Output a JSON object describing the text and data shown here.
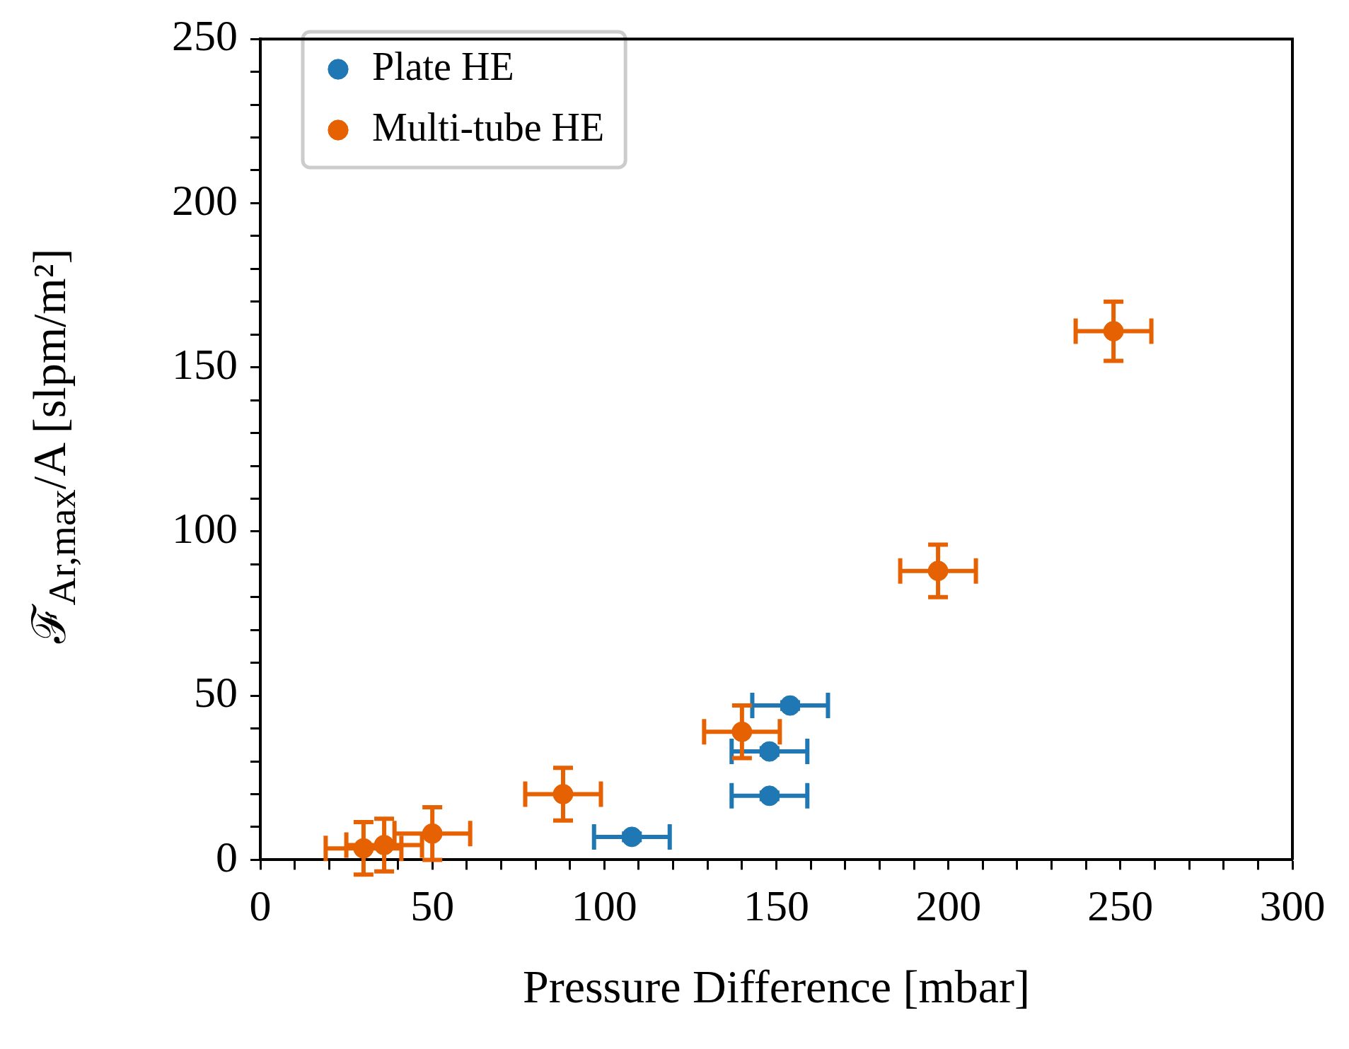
{
  "chart_data": {
    "type": "scatter",
    "xlabel": "Pressure Difference [mbar]",
    "ylabel": "ℱ$_{Ar,max}$/A [slpm/m²]",
    "xlim": [
      0,
      300
    ],
    "ylim": [
      0,
      250
    ],
    "xticks": [
      0,
      {
        "value": 10,
        "label": null
      },
      {
        "value": 20,
        "label": null
      },
      {
        "value": 30,
        "label": null
      },
      {
        "value": 40,
        "label": null
      },
      50,
      {
        "value": 60,
        "label": null
      },
      {
        "value": 70,
        "label": null
      },
      {
        "value": 80,
        "label": null
      },
      {
        "value": 90,
        "label": null
      },
      100,
      {
        "value": 110,
        "label": null
      },
      {
        "value": 120,
        "label": null
      },
      {
        "value": 130,
        "label": null
      },
      {
        "value": 140,
        "label": null
      },
      150,
      {
        "value": 160,
        "label": null
      },
      {
        "value": 170,
        "label": null
      },
      {
        "value": 180,
        "label": null
      },
      {
        "value": 190,
        "label": null
      },
      200,
      {
        "value": 210,
        "label": null
      },
      {
        "value": 220,
        "label": null
      },
      {
        "value": 230,
        "label": null
      },
      {
        "value": 240,
        "label": null
      },
      250,
      {
        "value": 260,
        "label": null
      },
      {
        "value": 270,
        "label": null
      },
      {
        "value": 280,
        "label": null
      },
      {
        "value": 290,
        "label": null
      },
      300
    ],
    "yticks": [
      0,
      {
        "value": 10,
        "label": null
      },
      {
        "value": 20,
        "label": null
      },
      {
        "value": 30,
        "label": null
      },
      {
        "value": 40,
        "label": null
      },
      50,
      {
        "value": 60,
        "label": null
      },
      {
        "value": 70,
        "label": null
      },
      {
        "value": 80,
        "label": null
      },
      {
        "value": 90,
        "label": null
      },
      100,
      {
        "value": 110,
        "label": null
      },
      {
        "value": 120,
        "label": null
      },
      {
        "value": 130,
        "label": null
      },
      {
        "value": 140,
        "label": null
      },
      150,
      {
        "value": 160,
        "label": null
      },
      {
        "value": 170,
        "label": null
      },
      {
        "value": 180,
        "label": null
      },
      {
        "value": 190,
        "label": null
      },
      200,
      {
        "value": 210,
        "label": null
      },
      {
        "value": 220,
        "label": null
      },
      {
        "value": 230,
        "label": null
      },
      {
        "value": 240,
        "label": null
      },
      250
    ],
    "grid": false,
    "legend": "top left",
    "marker": "circle",
    "series": [
      {
        "name": "Plate HE",
        "color": "#1f77b4",
        "x": [
          108,
          148,
          148,
          154
        ],
        "values": [
          7,
          19.5,
          33,
          47
        ],
        "errors": [
          1,
          1,
          1,
          1
        ],
        "xerrors": [
          11,
          11,
          11,
          11
        ]
      },
      {
        "name": "Multi-tube HE",
        "color": "#e66101",
        "x": [
          30,
          36,
          50,
          88,
          140,
          197,
          248
        ],
        "values": [
          3.5,
          4.5,
          8,
          20,
          39,
          88,
          161
        ],
        "errors": [
          8,
          8,
          8,
          8,
          8,
          8,
          9
        ],
        "xerrors": [
          11,
          11,
          11,
          11,
          11,
          11,
          11
        ]
      }
    ]
  }
}
